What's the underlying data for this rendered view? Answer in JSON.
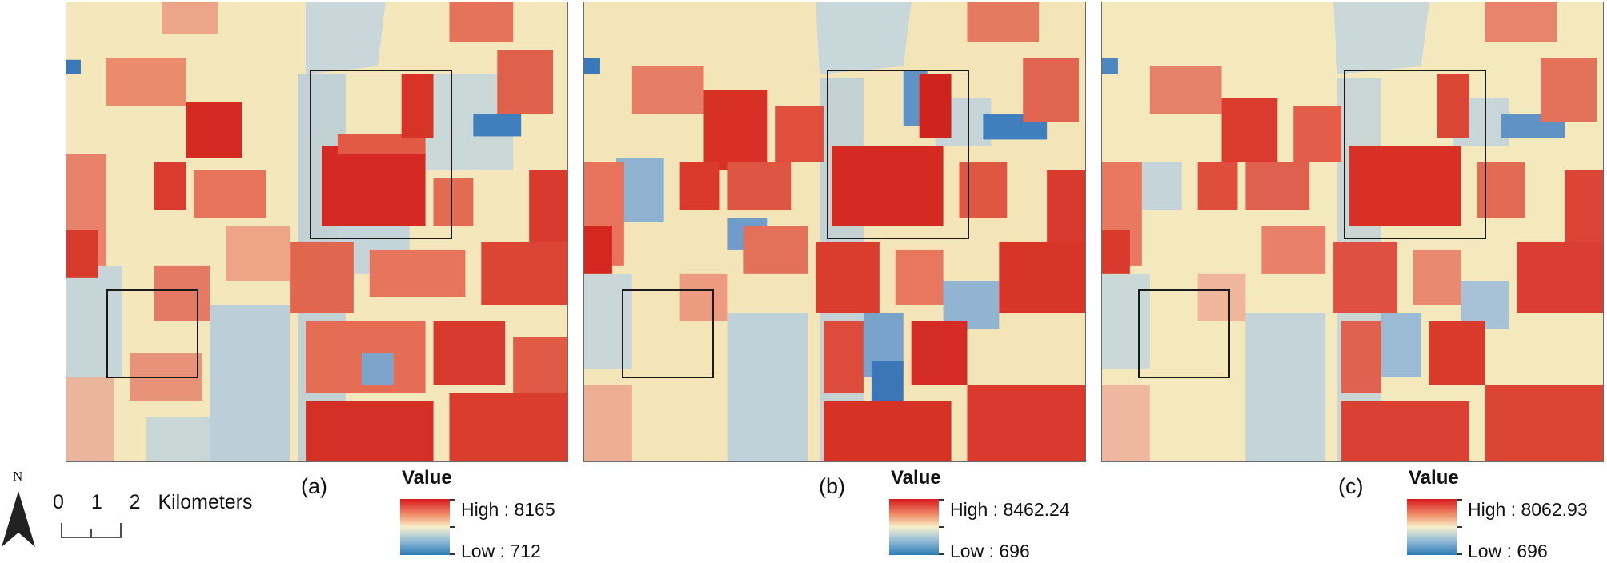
{
  "panels": [
    {
      "id": "a",
      "label": "(a)",
      "legend": {
        "title": "Value",
        "high": "High : 8165",
        "low": "Low : 712"
      }
    },
    {
      "id": "b",
      "label": "(b)",
      "legend": {
        "title": "Value",
        "high": "High : 8462.24",
        "low": "Low : 696"
      }
    },
    {
      "id": "c",
      "label": "(c)",
      "legend": {
        "title": "Value",
        "high": "High : 8062.93",
        "low": "Low : 696"
      }
    }
  ],
  "north_arrow": {
    "label": "N"
  },
  "scale_bar": {
    "ticks": [
      "0",
      "1",
      "2"
    ],
    "unit": "Kilometers"
  },
  "colors": {
    "high": "#d7191c",
    "mid": "#f6efc8",
    "low": "#2c7bb6",
    "roi_outline": "#1a1a1a"
  },
  "icons": {
    "north_arrow": "north-arrow-icon"
  }
}
